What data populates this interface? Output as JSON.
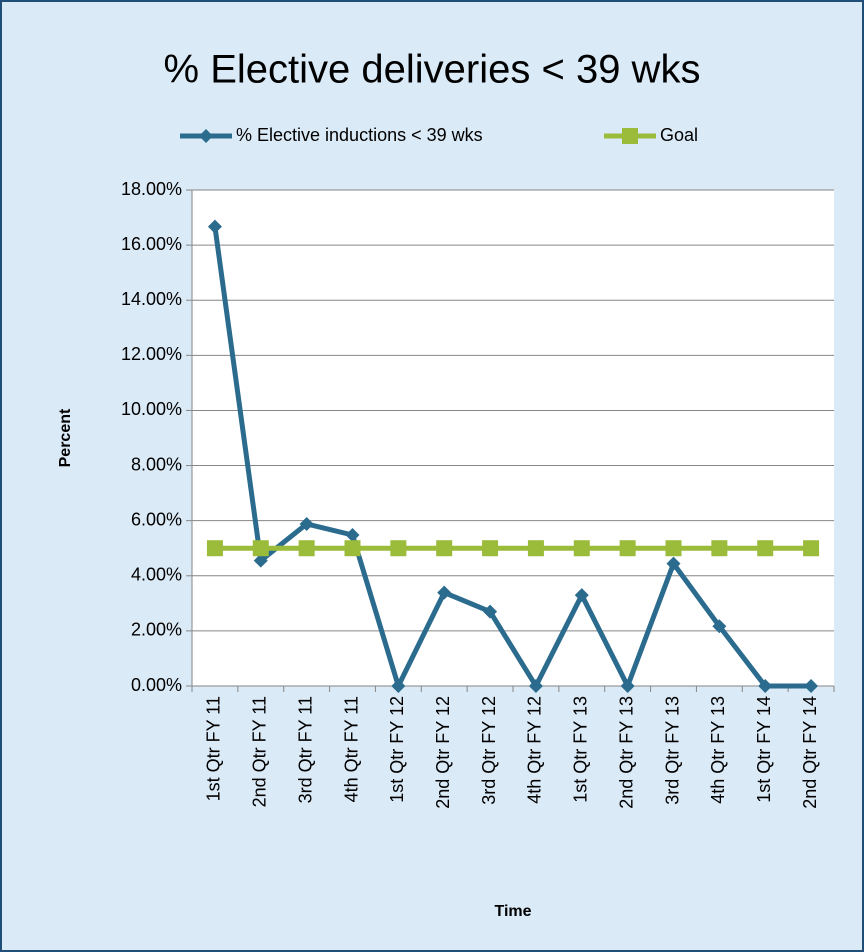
{
  "chart_data": {
    "type": "line",
    "title": "% Elective deliveries < 39 wks",
    "x_label": "Time",
    "y_label": "Percent",
    "categories": [
      "1st Qtr FY 11",
      "2nd Qtr FY 11",
      "3rd Qtr FY 11",
      "4th Qtr FY 11",
      "1st Qtr FY 12",
      "2nd Qtr FY 12",
      "3rd Qtr FY 12",
      "4th Qtr FY 12",
      "1st Qtr FY 13",
      "2nd Qtr FY 13",
      "3rd Qtr FY 13",
      "4th Qtr FY 13",
      "1st Qtr FY 14",
      "2nd Qtr FY 14"
    ],
    "series": [
      {
        "name": "% Elective inductions < 39 wks",
        "color": "#2b6b8e",
        "marker": "diamond",
        "values": [
          16.67,
          4.55,
          5.88,
          5.48,
          0,
          3.39,
          2.7,
          0,
          3.3,
          0,
          4.44,
          2.17,
          0,
          0
        ]
      },
      {
        "name": "Goal",
        "color": "#9bbb3b",
        "marker": "square",
        "values": [
          5,
          5,
          5,
          5,
          5,
          5,
          5,
          5,
          5,
          5,
          5,
          5,
          5,
          5
        ]
      }
    ],
    "ylim": [
      0,
      18
    ],
    "yticks": [
      {
        "value": 0,
        "label": "0.00%"
      },
      {
        "value": 2,
        "label": "2.00%"
      },
      {
        "value": 4,
        "label": "4.00%"
      },
      {
        "value": 6,
        "label": "6.00%"
      },
      {
        "value": 8,
        "label": "8.00%"
      },
      {
        "value": 10,
        "label": "10.00%"
      },
      {
        "value": 12,
        "label": "12.00%"
      },
      {
        "value": 14,
        "label": "14.00%"
      },
      {
        "value": 16,
        "label": "16.00%"
      },
      {
        "value": 18,
        "label": "18.00%"
      }
    ],
    "grid": true,
    "legend": "top"
  }
}
